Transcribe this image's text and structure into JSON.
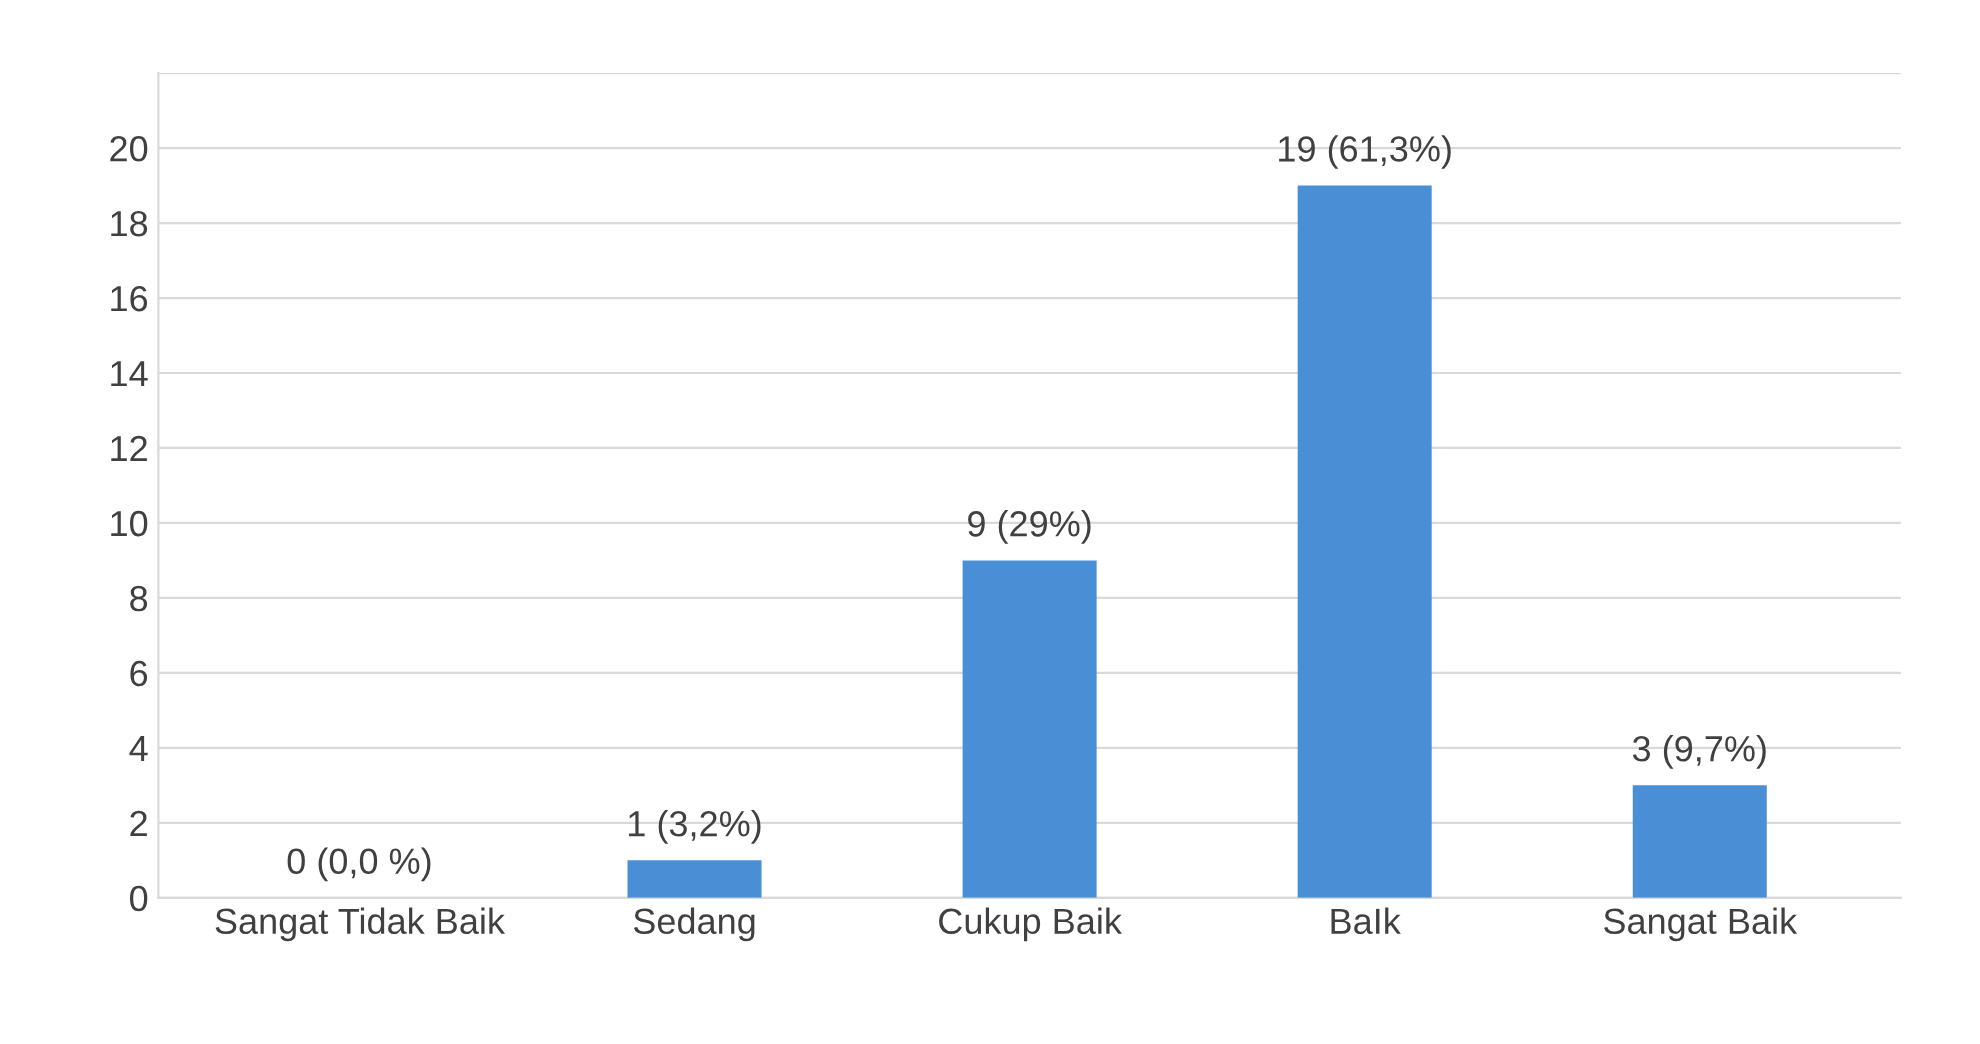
{
  "chart_data": {
    "type": "bar",
    "categories": [
      "Sangat Tidak Baik",
      "Sedang",
      "Cukup Baik",
      "BaIk",
      "Sangat Baik"
    ],
    "values": [
      0,
      1,
      9,
      19,
      3
    ],
    "colors": [
      "#1f2a3a",
      "#4a8fd6",
      "#4a8fd6",
      "#4a8fd6",
      "#4a8fd6"
    ],
    "value_labels": [
      "0 (0,0 %)",
      "1 (3,2%)",
      "9 (29%)",
      "19 (61,3%)",
      "3 (9,7%)"
    ],
    "ylim": [
      0,
      22
    ],
    "yticks": [
      0,
      2,
      4,
      6,
      8,
      10,
      12,
      14,
      16,
      18,
      20,
      {
        "value": 22,
        "label": null
      }
    ],
    "grid": "y"
  }
}
